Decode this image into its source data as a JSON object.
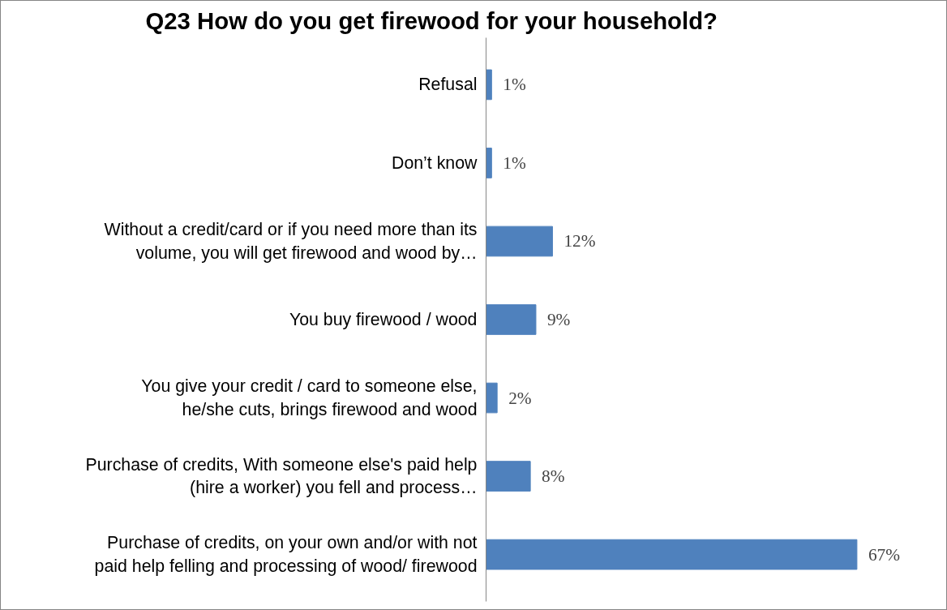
{
  "chart_data": {
    "type": "bar",
    "orientation": "horizontal",
    "title": "Q23 How do you get firewood for your household?",
    "categories": [
      "Refusal",
      "Don’t know",
      "Without a credit/card or if you need more than its volume, you will get firewood and wood by…",
      "You buy firewood / wood",
      "You give your credit / card to someone else, he/she cuts, brings firewood and wood",
      "Purchase of credits, With someone else's paid help (hire a worker) you fell and process…",
      "Purchase of credits, on your own and/or with not paid help felling and processing of wood/ firewood"
    ],
    "values": [
      1,
      1,
      12,
      9,
      2,
      8,
      67
    ],
    "value_labels": [
      "1%",
      "1%",
      "12%",
      "9%",
      "2%",
      "8%",
      "67%"
    ],
    "color": "#4f81bd",
    "grid": false
  }
}
